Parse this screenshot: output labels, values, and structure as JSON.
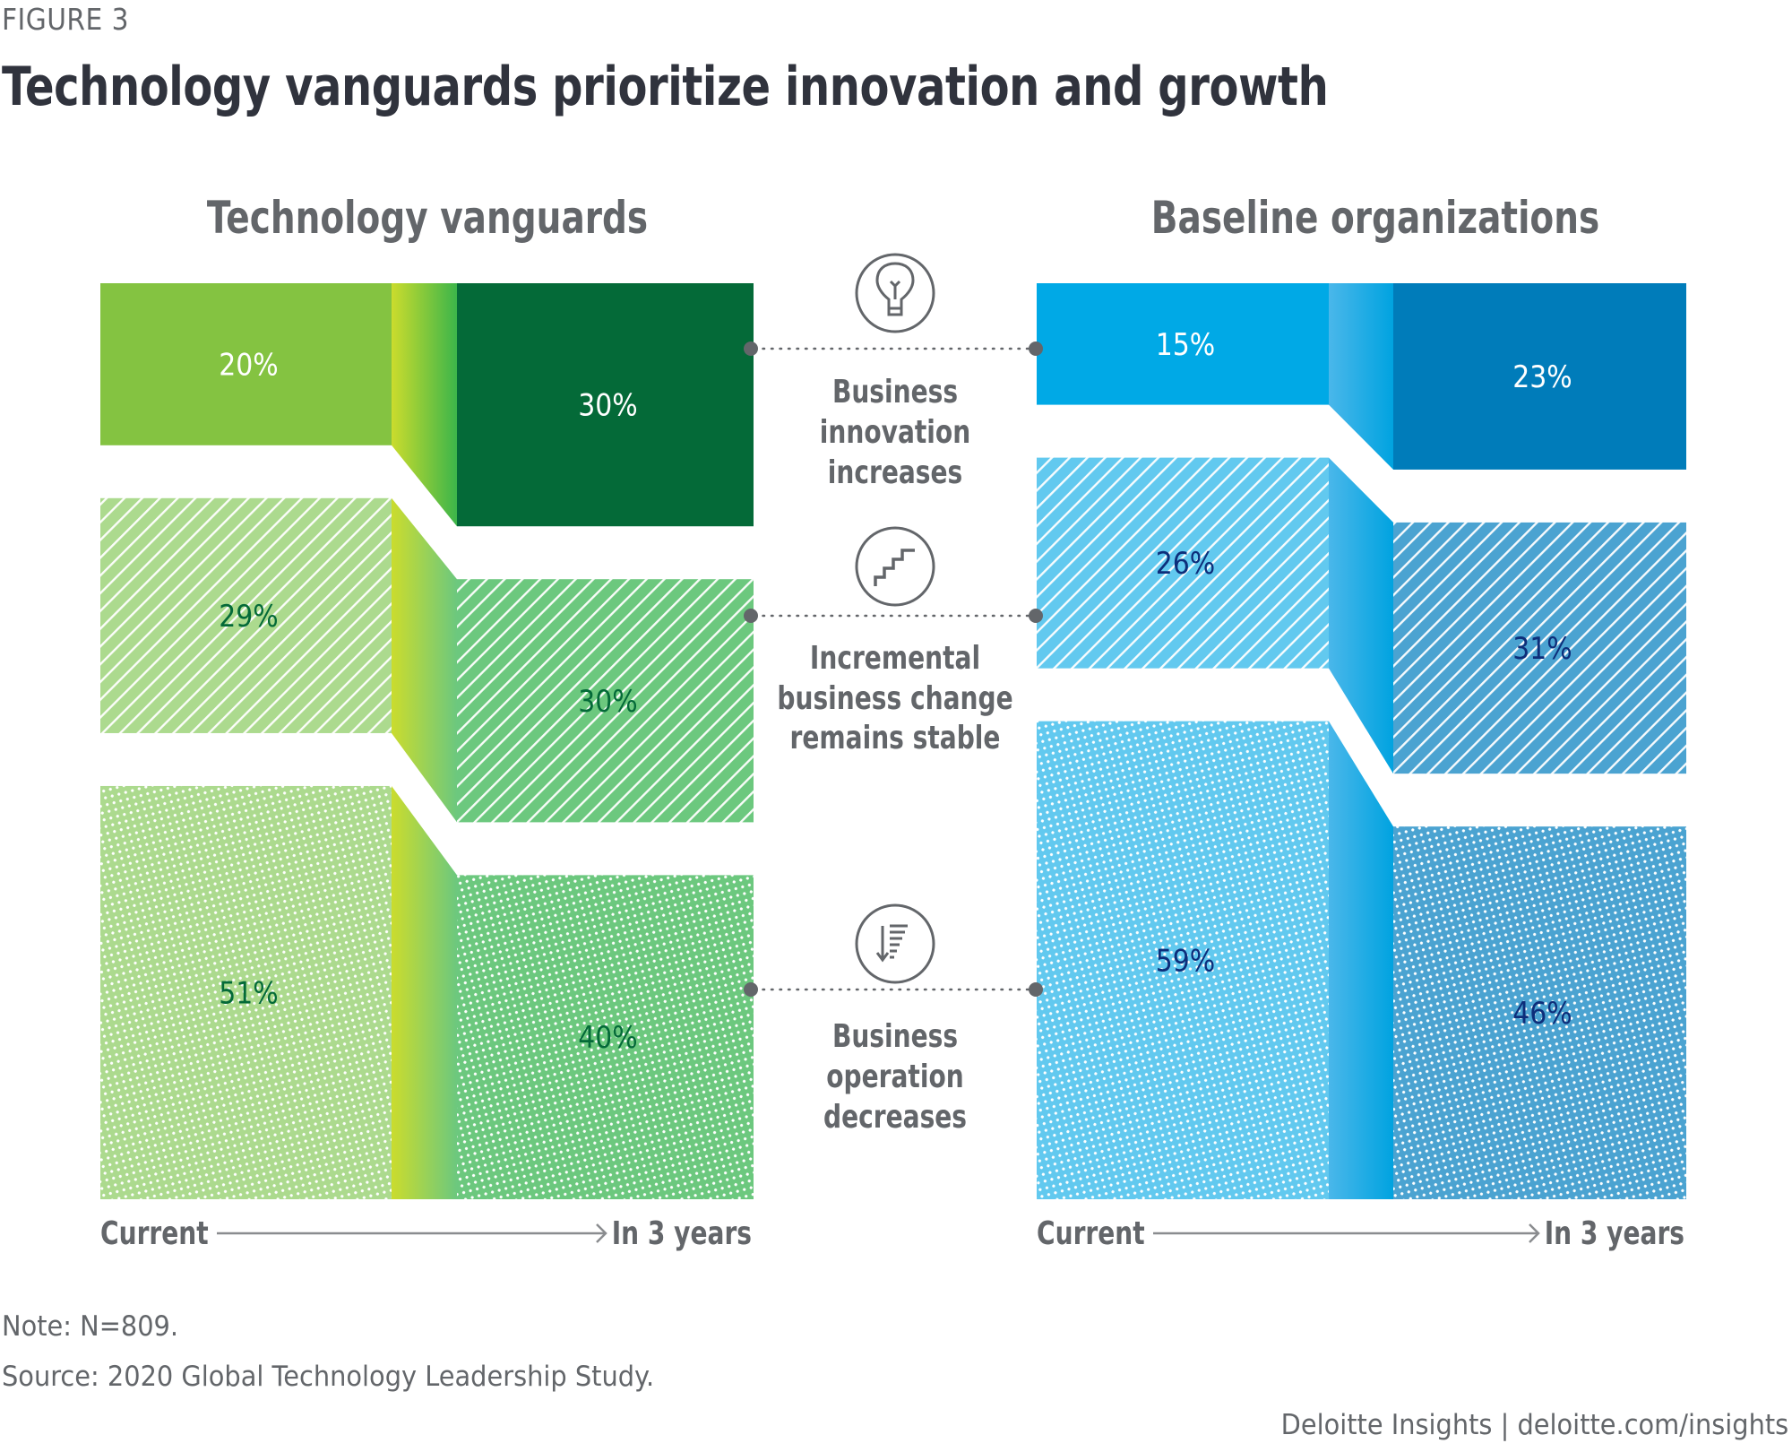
{
  "figure_label": "FIGURE 3",
  "title": "Technology vanguards prioritize innovation and growth",
  "chart_data": {
    "type": "sankey-style stacked bar comparison",
    "title": "Technology vanguards prioritize innovation and growth",
    "unit": "%",
    "categories": [
      "Business innovation",
      "Incremental business change",
      "Business operation"
    ],
    "panels": [
      {
        "name": "Technology vanguards",
        "time_labels": [
          "Current",
          "In 3 years"
        ],
        "series": [
          {
            "name": "Business innovation",
            "current": 20,
            "in_3_years": 30,
            "current_label": "20%",
            "future_label": "30%"
          },
          {
            "name": "Incremental business change",
            "current": 29,
            "in_3_years": 30,
            "current_label": "29%",
            "future_label": "30%"
          },
          {
            "name": "Business operation",
            "current": 51,
            "in_3_years": 40,
            "current_label": "51%",
            "future_label": "40%"
          }
        ]
      },
      {
        "name": "Baseline organizations",
        "time_labels": [
          "Current",
          "In 3 years"
        ],
        "series": [
          {
            "name": "Business innovation",
            "current": 15,
            "in_3_years": 23,
            "current_label": "15%",
            "future_label": "23%"
          },
          {
            "name": "Incremental business change",
            "current": 26,
            "in_3_years": 31,
            "current_label": "26%",
            "future_label": "31%"
          },
          {
            "name": "Business operation",
            "current": 59,
            "in_3_years": 46,
            "current_label": "59%",
            "future_label": "46%"
          }
        ]
      }
    ],
    "annotations": [
      {
        "icon": "lightbulb-icon",
        "lines": [
          "Business",
          "innovation",
          "increases"
        ]
      },
      {
        "icon": "stairs-icon",
        "lines": [
          "Incremental",
          "business change",
          "remains stable"
        ]
      },
      {
        "icon": "sort-descending-icon",
        "lines": [
          "Business",
          "operation",
          "decreases"
        ]
      }
    ],
    "colors": {
      "vanguards": {
        "current": [
          "#84c341",
          "#acda8e",
          "#acda8e"
        ],
        "future": [
          "#046a38",
          "#6cc87e",
          "#6cc87e"
        ],
        "connector_from": "#cbdc2d",
        "connector_to": "#3cb54a",
        "connector_to_light": "#6cc87e",
        "label_light": "#ffffff",
        "label_dark": "#046a38"
      },
      "baseline": {
        "current": [
          "#00a9e6",
          "#62c9ef",
          "#62c9ef"
        ],
        "future": [
          "#007cba",
          "#4ba3d1",
          "#4ba3d1"
        ],
        "connector_from": "#4ab7ea",
        "connector_to": "#00a3e0",
        "label_light": "#ffffff",
        "label_dark": "#0d2e7a"
      },
      "patterns": [
        "solid",
        "stripes",
        "dots"
      ]
    }
  },
  "note": "Note: N=809.",
  "source": "Source: 2020 Global Technology Leadership Study.",
  "footer": "Deloitte Insights | deloitte.com/insights"
}
